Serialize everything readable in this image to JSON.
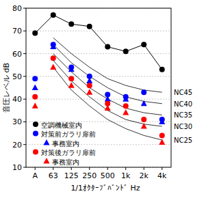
{
  "chart_data": {
    "type": "line",
    "x_label": "1/1ｵｸﾀｰﾌﾞﾊﾞﾝﾄﾞ Hz",
    "y_label": "音圧レベル dB",
    "categories": [
      "A",
      "63",
      "125",
      "250",
      "500",
      "1k",
      "2k",
      "4k"
    ],
    "ylim": [
      10,
      80
    ],
    "yticks": [
      10,
      20,
      30,
      40,
      50,
      60,
      70,
      80
    ],
    "grid": true,
    "legend": "bottom-left",
    "series": [
      {
        "name": "空調機械室内",
        "type": "line",
        "color": "#000000",
        "marker": "circle",
        "line_style": "solid",
        "values": [
          69,
          77,
          73,
          72,
          63,
          61,
          64,
          53
        ]
      },
      {
        "name": "対策前ガラリ扉前",
        "type": "scatter",
        "color": "#0000ff",
        "marker": "circle",
        "line_style": "none",
        "values": [
          49,
          64,
          54,
          50,
          42,
          41,
          43,
          31
        ]
      },
      {
        "name": "事務室内",
        "type": "scatter",
        "color": "#0000ff",
        "marker": "triangle",
        "line_style": "none",
        "values": [
          45,
          63,
          53,
          48,
          40,
          40,
          38,
          30
        ]
      },
      {
        "name": "対策後ガラリ扉前",
        "type": "scatter",
        "color": "#ff0000",
        "marker": "circle",
        "line_style": "none",
        "values": [
          41,
          58,
          49,
          46,
          38,
          37,
          31,
          24
        ]
      },
      {
        "name": "事務室内",
        "type": "scatter",
        "color": "#ff0000",
        "marker": "triangle",
        "line_style": "none",
        "values": [
          37,
          54,
          46,
          43,
          36,
          34,
          28,
          21
        ]
      },
      {
        "name": "NC45",
        "type": "line",
        "color": "#000000",
        "marker": "none",
        "line_style": "solid",
        "values": [
          null,
          67,
          60,
          54,
          49,
          46,
          44,
          43
        ]
      },
      {
        "name": "NC40",
        "type": "line",
        "color": "#000000",
        "marker": "none",
        "line_style": "solid",
        "values": [
          null,
          64,
          56,
          50,
          45,
          41,
          39,
          38
        ]
      },
      {
        "name": "NC35",
        "type": "line",
        "color": "#000000",
        "marker": "none",
        "line_style": "solid",
        "values": [
          null,
          60,
          52,
          45,
          40,
          36,
          34,
          33
        ]
      },
      {
        "name": "NC30",
        "type": "line",
        "color": "#000000",
        "marker": "none",
        "line_style": "solid",
        "values": [
          null,
          57,
          48,
          41,
          35,
          31,
          29,
          28
        ]
      },
      {
        "name": "NC25",
        "type": "line",
        "color": "#000000",
        "marker": "none",
        "line_style": "solid",
        "values": [
          null,
          54,
          44,
          37,
          31,
          27,
          24,
          22
        ]
      }
    ]
  }
}
